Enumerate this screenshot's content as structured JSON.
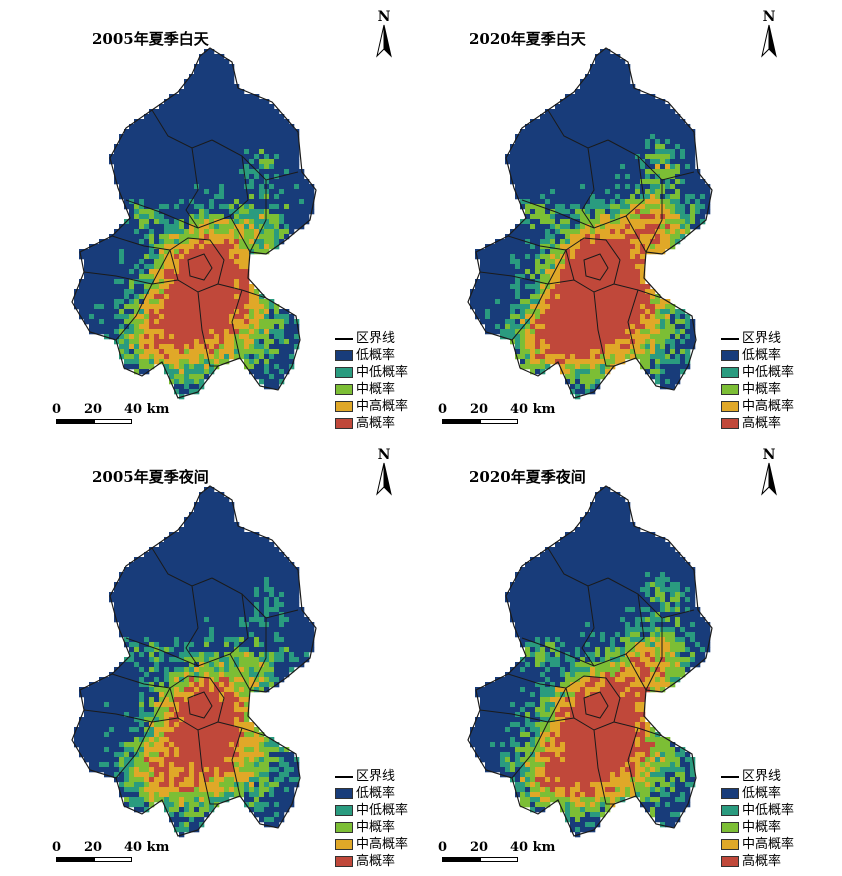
{
  "colors": {
    "low": "#183C7A",
    "mid_low": "#2A9B7F",
    "mid": "#7CBE35",
    "mid_high": "#E0A828",
    "high": "#C0483A",
    "boundary": "#1a1a1a"
  },
  "legend": {
    "boundary": "区界线",
    "low": "低概率",
    "mid_low": "中低概率",
    "mid": "中概率",
    "mid_high": "中高概率",
    "high": "高概率"
  },
  "north_label": "N",
  "scale": {
    "zero": "0",
    "twenty": "20",
    "forty": "40 km"
  },
  "panels": [
    {
      "title": "2005年夏季白天",
      "core": 0.72,
      "spread": 0.88,
      "ne": 0.45,
      "sw": 0.55,
      "seed": 11
    },
    {
      "title": "2020年夏季白天",
      "core": 0.82,
      "spread": 1.0,
      "ne": 0.85,
      "sw": 0.8,
      "seed": 23
    },
    {
      "title": "2005年夏季夜间",
      "core": 0.62,
      "spread": 0.8,
      "ne": 0.4,
      "sw": 0.5,
      "seed": 37
    },
    {
      "title": "2020年夏季夜间",
      "core": 0.68,
      "spread": 0.9,
      "ne": 0.8,
      "sw": 0.65,
      "seed": 53
    }
  ]
}
